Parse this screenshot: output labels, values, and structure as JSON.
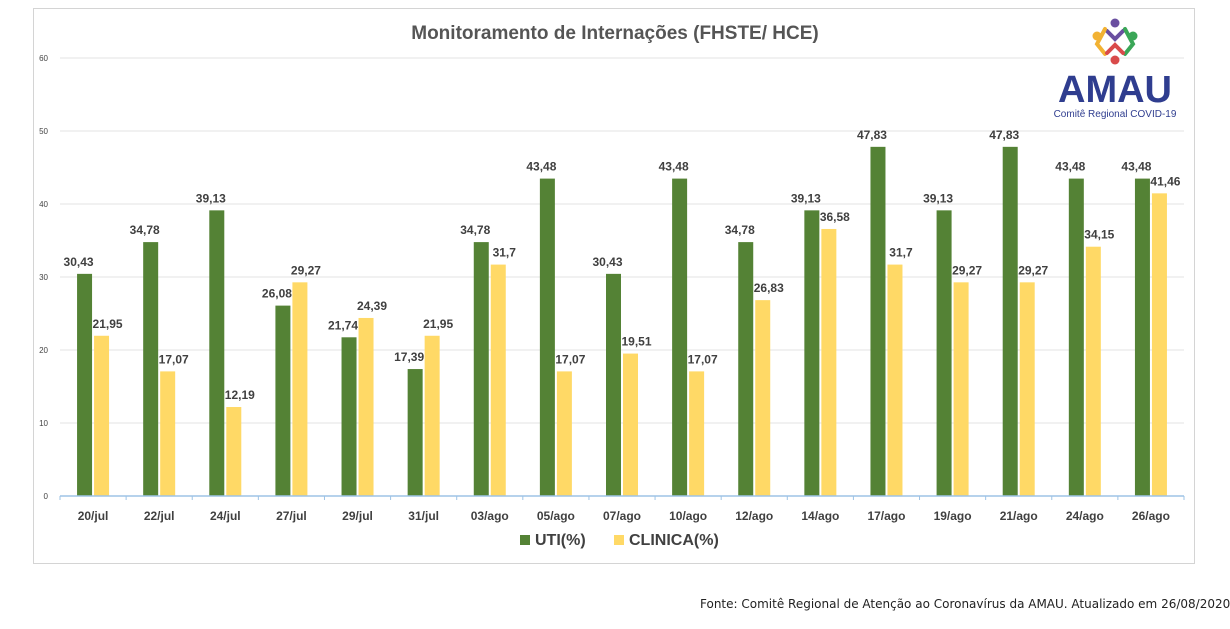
{
  "chart_data": {
    "type": "bar",
    "title": "Monitoramento de Internações (FHSTE/ HCE)",
    "xlabel": "",
    "ylabel": "",
    "ylim": [
      0,
      60
    ],
    "yticks": [
      0,
      10,
      20,
      30,
      40,
      50,
      60
    ],
    "grid": true,
    "legend_position": "bottom",
    "categories": [
      "20/jul",
      "22/jul",
      "24/jul",
      "27/jul",
      "29/jul",
      "31/jul",
      "03/ago",
      "05/ago",
      "07/ago",
      "10/ago",
      "12/ago",
      "14/ago",
      "17/ago",
      "19/ago",
      "21/ago",
      "24/ago",
      "26/ago"
    ],
    "series": [
      {
        "name": "UTI(%)",
        "color": "#548235",
        "values": [
          30.43,
          34.78,
          39.13,
          26.08,
          21.74,
          17.39,
          34.78,
          43.48,
          30.43,
          43.48,
          34.78,
          39.13,
          47.83,
          39.13,
          47.83,
          43.48,
          43.48
        ],
        "labels": [
          "30,43",
          "34,78",
          "39,13",
          "26,08",
          "21,74",
          "17,39",
          "34,78",
          "43,48",
          "30,43",
          "43,48",
          "34,78",
          "39,13",
          "47,83",
          "39,13",
          "47,83",
          "43,48",
          "43,48"
        ]
      },
      {
        "name": "CLINICA(%)",
        "color": "#ffd966",
        "values": [
          21.95,
          17.07,
          12.19,
          29.27,
          24.39,
          21.95,
          31.7,
          17.07,
          19.51,
          17.07,
          26.83,
          36.58,
          31.7,
          29.27,
          29.27,
          34.15,
          41.46
        ],
        "labels": [
          "21,95",
          "17,07",
          "12,19",
          "29,27",
          "24,39",
          "21,95",
          "31,7",
          "17,07",
          "19,51",
          "17,07",
          "26,83",
          "36,58",
          "31,7",
          "29,27",
          "29,27",
          "34,15",
          "41,46"
        ]
      }
    ]
  },
  "logo": {
    "name": "AMAU",
    "subtitle": "Comitê Regional COVID-19",
    "colors": [
      "#6a4fa0",
      "#f2b233",
      "#d94a4a",
      "#3aa657"
    ]
  },
  "source_note": "Fonte: Comitê Regional de Atenção ao Coronavírus da AMAU. Atualizado em 26/08/2020"
}
